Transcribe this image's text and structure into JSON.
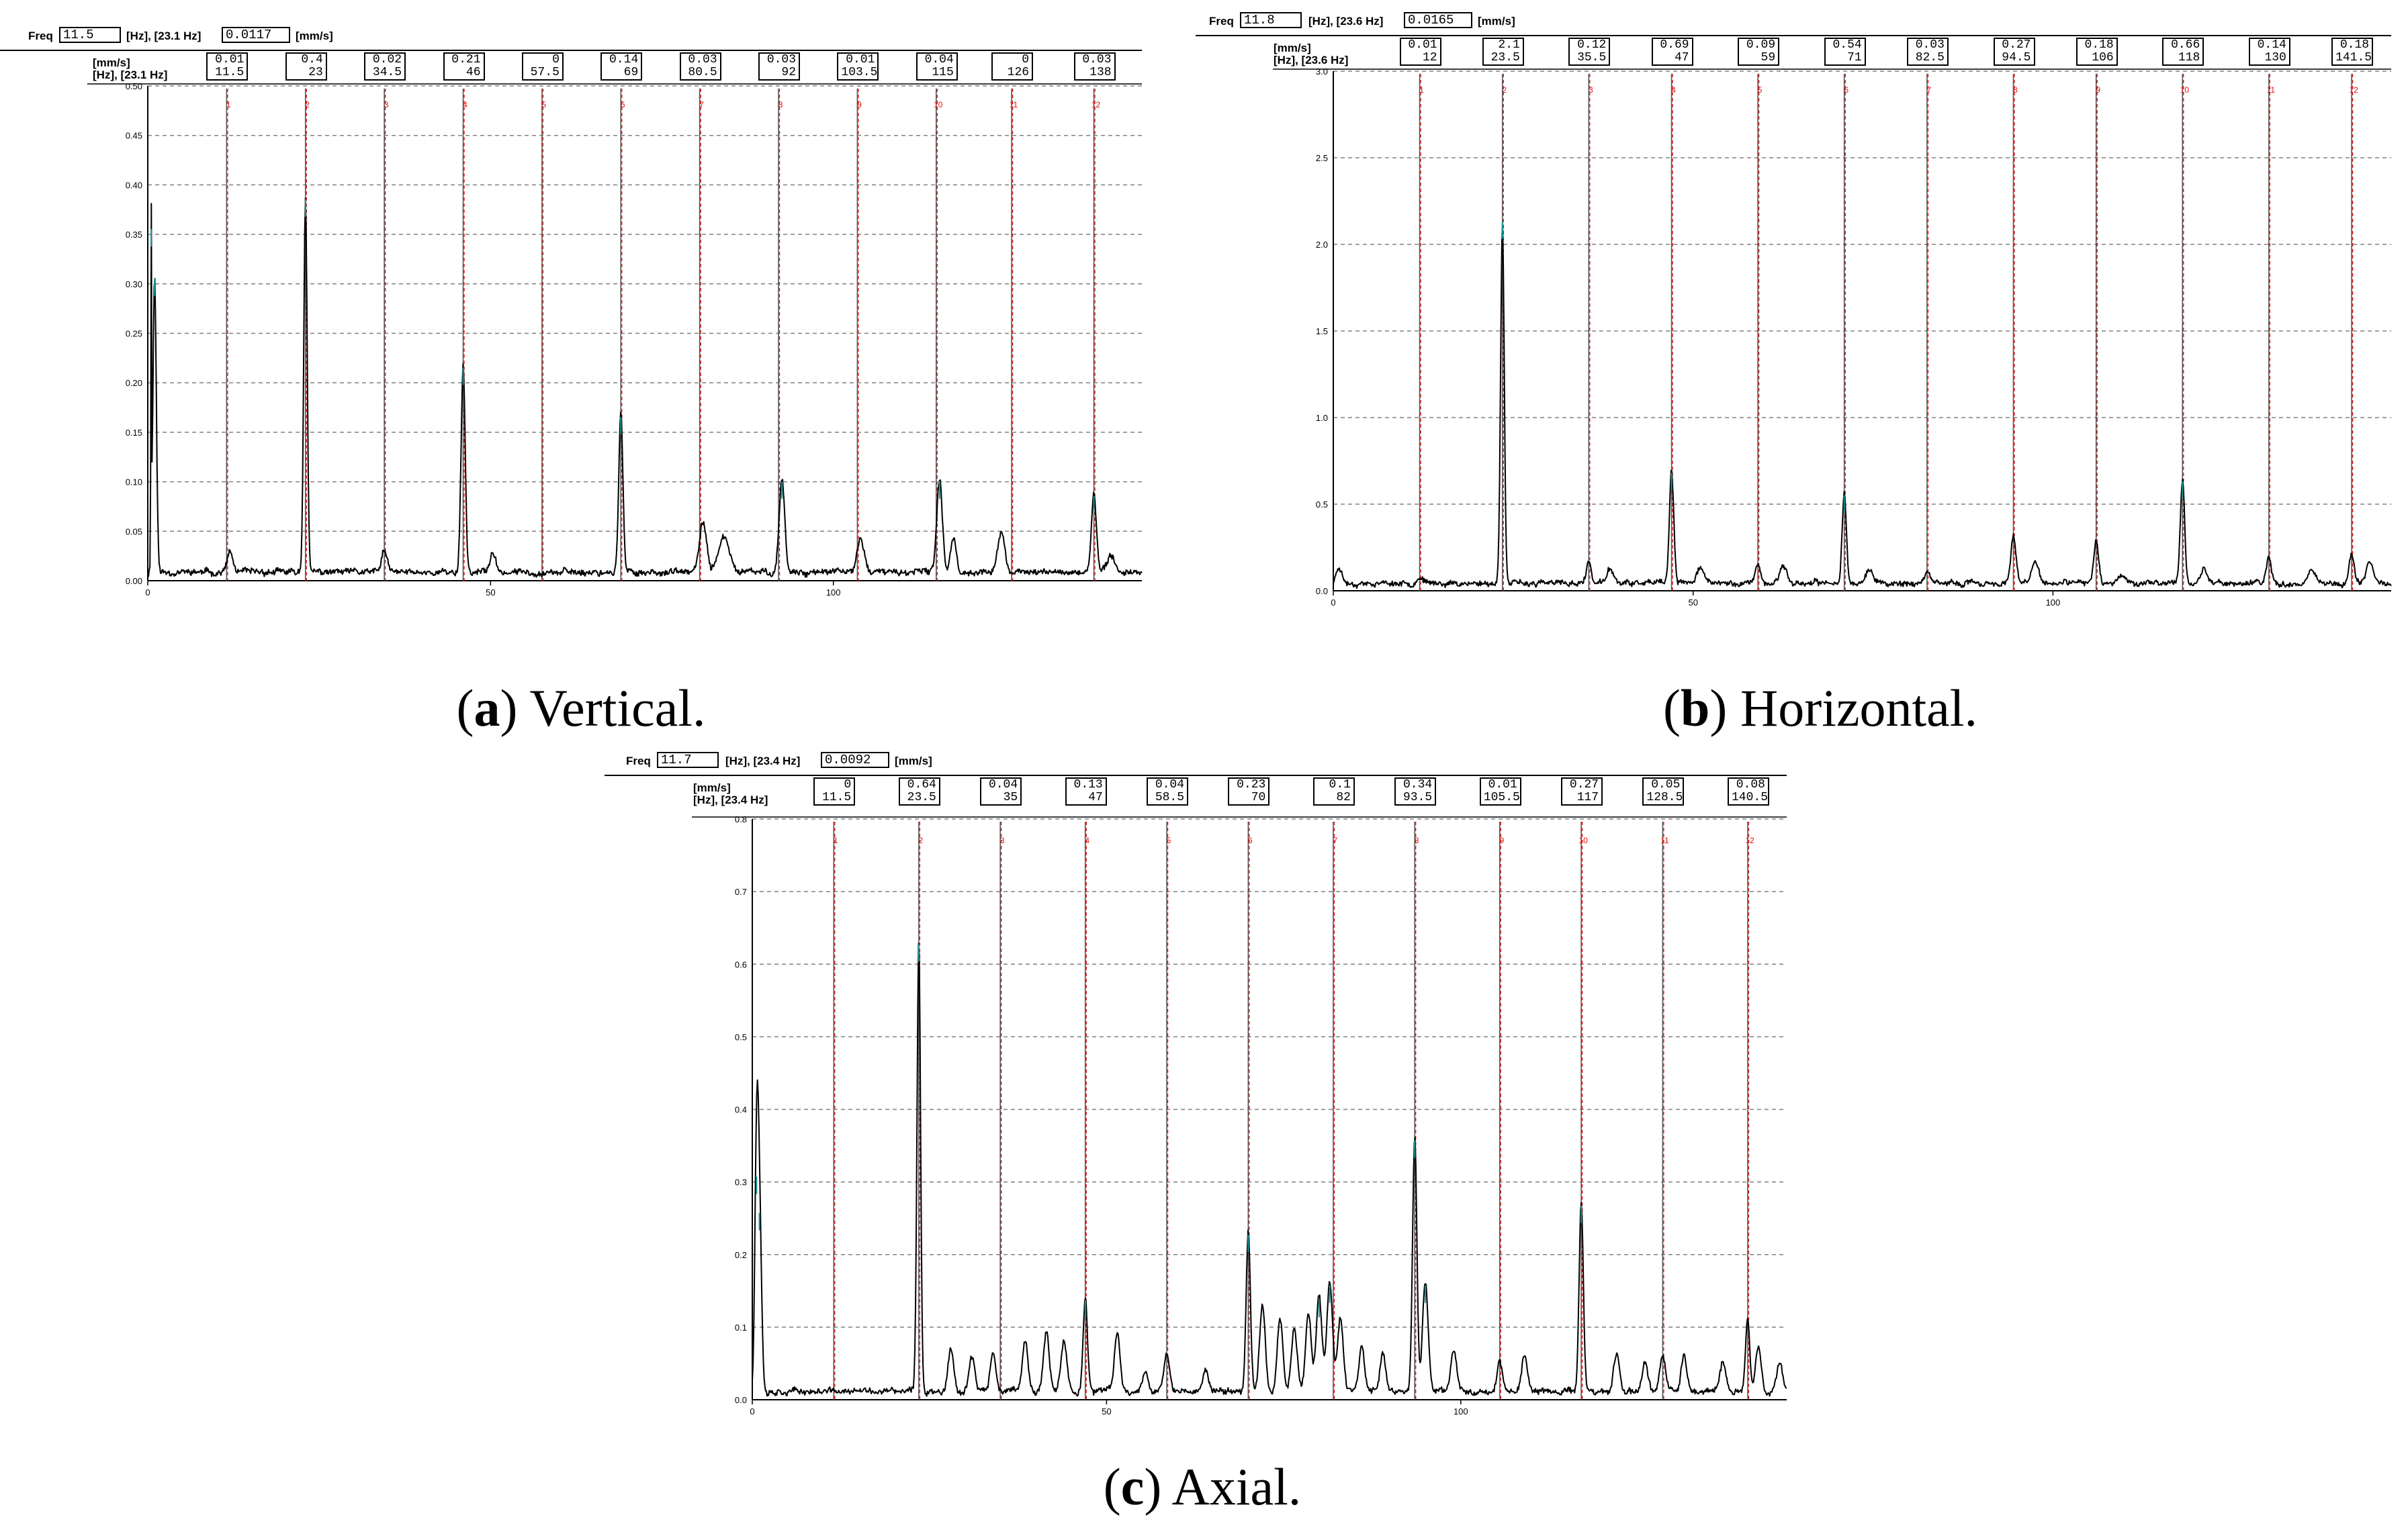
{
  "captions": [
    {
      "letter": "a",
      "text": ") Vertical."
    },
    {
      "letter": "b",
      "text": ") Horizontal."
    },
    {
      "letter": "c",
      "text": ") Axial."
    }
  ],
  "paren_open": "(",
  "colors": {
    "trace": "#000000",
    "harmonic_line": "#e01010",
    "grid": "#808080",
    "peak_tip": "#1a9a9a"
  },
  "chart_data": [
    {
      "id": "a",
      "type": "line",
      "header": {
        "freq_label": "Freq",
        "freq_value": "11.5",
        "hz_info": "[Hz], [23.1 Hz]",
        "amp_value": "0.0117",
        "unit": "[mm/s]"
      },
      "row_labels": [
        "[mm/s]",
        "[Hz], [23.1 Hz]"
      ],
      "markers": [
        {
          "amp": "0.01",
          "hz": "11.5"
        },
        {
          "amp": "0.4",
          "hz": "23"
        },
        {
          "amp": "0.02",
          "hz": "34.5"
        },
        {
          "amp": "0.21",
          "hz": "46"
        },
        {
          "amp": "0",
          "hz": "57.5"
        },
        {
          "amp": "0.14",
          "hz": "69"
        },
        {
          "amp": "0.03",
          "hz": "80.5"
        },
        {
          "amp": "0.03",
          "hz": "92"
        },
        {
          "amp": "0.01",
          "hz": "103.5"
        },
        {
          "amp": "0.04",
          "hz": "115"
        },
        {
          "amp": "0",
          "hz": "126"
        },
        {
          "amp": "0.03",
          "hz": "138"
        }
      ],
      "harmonic_labels": [
        "1",
        "2",
        "3",
        "4",
        "5",
        "6",
        "7",
        "8",
        "9",
        "10",
        "11",
        "12"
      ],
      "xlim": [
        0,
        145
      ],
      "ylim": [
        0,
        0.5
      ],
      "xticks": [
        0,
        50,
        100
      ],
      "xtick_labels": [
        "0",
        "50",
        "100"
      ],
      "yticks": [
        0.0,
        0.05,
        0.1,
        0.15,
        0.2,
        0.25,
        0.3,
        0.35,
        0.4,
        0.45,
        0.5
      ],
      "ytick_labels": [
        "0.00",
        "0.05",
        "0.10",
        "0.15",
        "0.20",
        "0.25",
        "0.30",
        "0.35",
        "0.40",
        "0.45",
        "0.50"
      ],
      "grid": true,
      "peaks": [
        [
          0.5,
          0.05,
          0.35
        ],
        [
          1.0,
          0.25,
          0.3
        ],
        [
          12.0,
          0.4,
          0.02
        ],
        [
          23.0,
          0.25,
          0.38
        ],
        [
          34.5,
          0.4,
          0.022
        ],
        [
          46.0,
          0.3,
          0.21
        ],
        [
          50.3,
          0.4,
          0.02
        ],
        [
          69.0,
          0.3,
          0.16
        ],
        [
          81.0,
          0.5,
          0.05
        ],
        [
          84.0,
          0.8,
          0.035
        ],
        [
          92.5,
          0.4,
          0.095
        ],
        [
          104.0,
          0.5,
          0.035
        ],
        [
          115.5,
          0.4,
          0.095
        ],
        [
          117.5,
          0.4,
          0.035
        ],
        [
          124.5,
          0.5,
          0.04
        ],
        [
          138.0,
          0.35,
          0.08
        ],
        [
          140.5,
          0.5,
          0.02
        ]
      ],
      "noise_level": 0.006,
      "seed": 11
    },
    {
      "id": "b",
      "type": "line",
      "header": {
        "freq_label": "Freq",
        "freq_value": "11.8",
        "hz_info": "[Hz], [23.6 Hz]",
        "amp_value": "0.0165",
        "unit": "[mm/s]"
      },
      "row_labels": [
        "[mm/s]",
        "[Hz], [23.6 Hz]"
      ],
      "markers": [
        {
          "amp": "0.01",
          "hz": "12"
        },
        {
          "amp": "2.1",
          "hz": "23.5"
        },
        {
          "amp": "0.12",
          "hz": "35.5"
        },
        {
          "amp": "0.69",
          "hz": "47"
        },
        {
          "amp": "0.09",
          "hz": "59"
        },
        {
          "amp": "0.54",
          "hz": "71"
        },
        {
          "amp": "0.03",
          "hz": "82.5"
        },
        {
          "amp": "0.27",
          "hz": "94.5"
        },
        {
          "amp": "0.18",
          "hz": "106"
        },
        {
          "amp": "0.66",
          "hz": "118"
        },
        {
          "amp": "0.14",
          "hz": "130"
        },
        {
          "amp": "0.18",
          "hz": "141.5"
        }
      ],
      "harmonic_labels": [
        "1",
        "2",
        "3",
        "4",
        "5",
        "6",
        "7",
        "8",
        "9",
        "10",
        "11",
        "12"
      ],
      "xlim": [
        0,
        147
      ],
      "ylim": [
        0,
        3.0
      ],
      "xticks": [
        0,
        50,
        100
      ],
      "xtick_labels": [
        "0",
        "50",
        "100"
      ],
      "yticks": [
        0.0,
        0.5,
        1.0,
        1.5,
        2.0,
        2.5,
        3.0
      ],
      "ytick_labels": [
        "0.0",
        "0.5",
        "1.0",
        "1.5",
        "2.0",
        "2.5",
        "3.0"
      ],
      "grid": true,
      "peaks": [
        [
          0.8,
          0.4,
          0.1
        ],
        [
          12.0,
          0.4,
          0.04
        ],
        [
          23.5,
          0.25,
          2.1
        ],
        [
          35.5,
          0.35,
          0.12
        ],
        [
          38.5,
          0.5,
          0.08
        ],
        [
          47.0,
          0.3,
          0.65
        ],
        [
          51.0,
          0.5,
          0.1
        ],
        [
          59.0,
          0.4,
          0.1
        ],
        [
          62.5,
          0.5,
          0.1
        ],
        [
          71.0,
          0.3,
          0.52
        ],
        [
          74.5,
          0.5,
          0.08
        ],
        [
          82.5,
          0.4,
          0.05
        ],
        [
          94.5,
          0.35,
          0.26
        ],
        [
          97.5,
          0.5,
          0.12
        ],
        [
          106.0,
          0.35,
          0.25
        ],
        [
          109.5,
          0.5,
          0.06
        ],
        [
          118.0,
          0.3,
          0.6
        ],
        [
          121.0,
          0.5,
          0.08
        ],
        [
          130.0,
          0.35,
          0.15
        ],
        [
          136.0,
          0.5,
          0.08
        ],
        [
          141.5,
          0.35,
          0.17
        ],
        [
          144.0,
          0.5,
          0.12
        ]
      ],
      "noise_level": 0.03,
      "seed": 23
    },
    {
      "id": "c",
      "type": "line",
      "header": {
        "freq_label": "Freq",
        "freq_value": "11.7",
        "hz_info": "[Hz], [23.4 Hz]",
        "amp_value": "0.0092",
        "unit": "[mm/s]"
      },
      "row_labels": [
        "[mm/s]",
        "[Hz], [23.4 Hz]"
      ],
      "markers": [
        {
          "amp": "0",
          "hz": "11.5"
        },
        {
          "amp": "0.64",
          "hz": "23.5"
        },
        {
          "amp": "0.04",
          "hz": "35"
        },
        {
          "amp": "0.13",
          "hz": "47"
        },
        {
          "amp": "0.04",
          "hz": "58.5"
        },
        {
          "amp": "0.23",
          "hz": "70"
        },
        {
          "amp": "0.1",
          "hz": "82"
        },
        {
          "amp": "0.34",
          "hz": "93.5"
        },
        {
          "amp": "0.01",
          "hz": "105.5"
        },
        {
          "amp": "0.27",
          "hz": "117"
        },
        {
          "amp": "0.05",
          "hz": "128.5"
        },
        {
          "amp": "0.08",
          "hz": "140.5"
        }
      ],
      "harmonic_labels": [
        "1",
        "2",
        "3",
        "4",
        "5",
        "6",
        "7",
        "8",
        "9",
        "10",
        "11",
        "12"
      ],
      "xlim": [
        0,
        146
      ],
      "ylim": [
        0,
        0.8
      ],
      "xticks": [
        0,
        50,
        100
      ],
      "xtick_labels": [
        "0",
        "50",
        "100"
      ],
      "yticks": [
        0.0,
        0.1,
        0.2,
        0.3,
        0.4,
        0.5,
        0.6,
        0.7,
        0.8
      ],
      "ytick_labels": [
        "0.0",
        "0.1",
        "0.2",
        "0.3",
        "0.4",
        "0.5",
        "0.6",
        "0.7",
        "0.8"
      ],
      "grid": true,
      "peaks": [
        [
          0.6,
          0.25,
          0.3
        ],
        [
          1.0,
          0.3,
          0.25
        ],
        [
          23.5,
          0.25,
          0.62
        ],
        [
          28.0,
          0.4,
          0.06
        ],
        [
          31.0,
          0.4,
          0.05
        ],
        [
          34.0,
          0.4,
          0.05
        ],
        [
          38.5,
          0.4,
          0.07
        ],
        [
          41.5,
          0.4,
          0.08
        ],
        [
          44.0,
          0.4,
          0.07
        ],
        [
          47.0,
          0.3,
          0.13
        ],
        [
          51.5,
          0.4,
          0.08
        ],
        [
          55.5,
          0.4,
          0.03
        ],
        [
          58.5,
          0.4,
          0.05
        ],
        [
          64.0,
          0.4,
          0.03
        ],
        [
          70.0,
          0.3,
          0.22
        ],
        [
          72.0,
          0.4,
          0.12
        ],
        [
          74.5,
          0.4,
          0.1
        ],
        [
          76.5,
          0.4,
          0.09
        ],
        [
          78.5,
          0.4,
          0.11
        ],
        [
          80.0,
          0.4,
          0.13
        ],
        [
          81.5,
          0.4,
          0.15
        ],
        [
          83.0,
          0.4,
          0.1
        ],
        [
          86.0,
          0.4,
          0.06
        ],
        [
          89.0,
          0.4,
          0.05
        ],
        [
          93.5,
          0.3,
          0.35
        ],
        [
          95.0,
          0.4,
          0.15
        ],
        [
          99.0,
          0.4,
          0.06
        ],
        [
          105.5,
          0.4,
          0.04
        ],
        [
          109.0,
          0.4,
          0.05
        ],
        [
          117.0,
          0.3,
          0.26
        ],
        [
          122.0,
          0.4,
          0.05
        ],
        [
          126.0,
          0.4,
          0.04
        ],
        [
          128.5,
          0.4,
          0.05
        ],
        [
          131.5,
          0.4,
          0.05
        ],
        [
          137.0,
          0.4,
          0.04
        ],
        [
          140.5,
          0.3,
          0.1
        ],
        [
          142.0,
          0.4,
          0.06
        ],
        [
          145.0,
          0.4,
          0.04
        ]
      ],
      "noise_level": 0.008,
      "seed": 37
    }
  ]
}
